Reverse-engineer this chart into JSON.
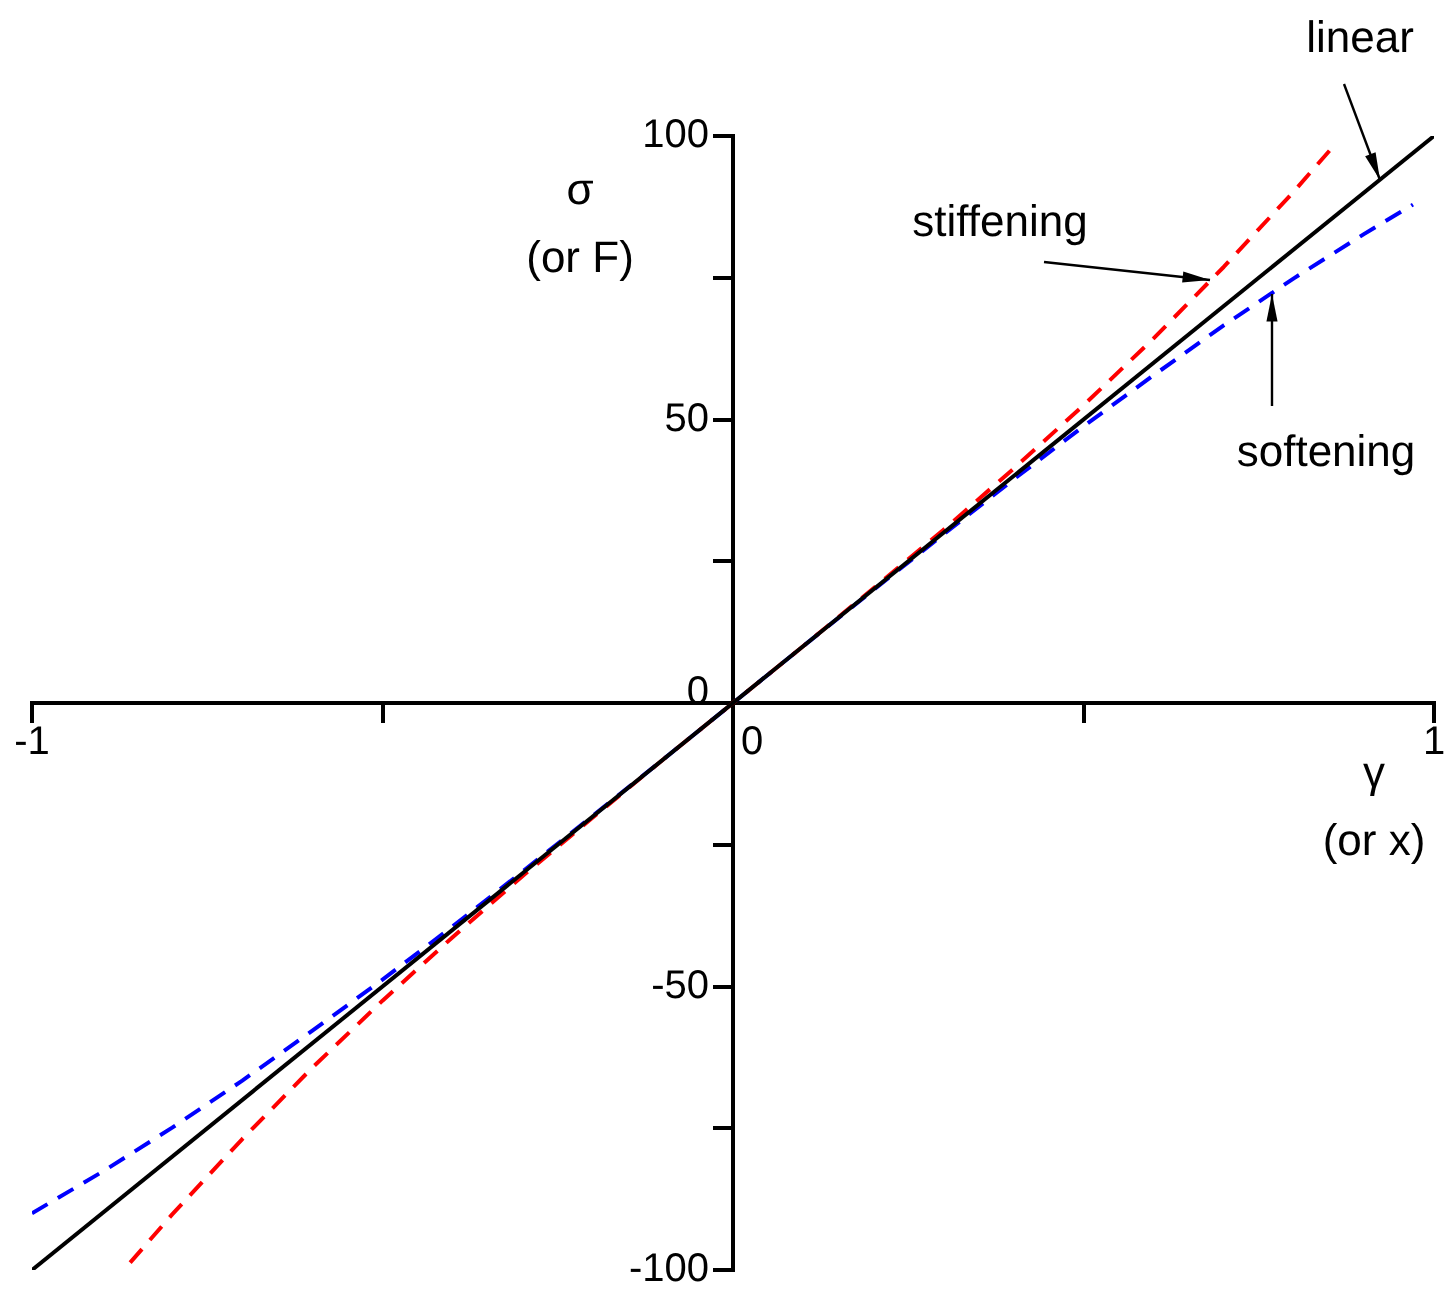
{
  "chart_data": {
    "type": "line",
    "xlabel": "γ\n(or x)",
    "ylabel": "σ\n(or F)",
    "xlim": [
      -1,
      1
    ],
    "ylim": [
      -100,
      100
    ],
    "xticks": [
      -1,
      {
        "value": -0.5,
        "label": null
      },
      0,
      {
        "value": 0.5,
        "label": null
      },
      1
    ],
    "yticks": [
      -100,
      {
        "value": -75,
        "label": null
      },
      -50,
      {
        "value": -25,
        "label": null
      },
      0,
      {
        "value": 25,
        "label": null
      },
      50,
      {
        "value": 75,
        "label": null
      },
      100
    ],
    "grid": false,
    "legend": false,
    "marker": "none",
    "series": [
      {
        "name": "linear",
        "color": "#000000",
        "line_style": "solid",
        "x": [
          -1,
          1
        ],
        "values": [
          -100,
          100
        ]
      },
      {
        "name": "stiffening",
        "color": "#ff0000",
        "line_style": "dashed",
        "x": [
          -0.86,
          -0.8,
          -0.7,
          -0.6,
          -0.5,
          -0.4,
          -0.3,
          -0.2,
          -0.1,
          0,
          0.1,
          0.2,
          0.3,
          0.4,
          0.5,
          0.6,
          0.7,
          0.8,
          0.86
        ],
        "values": [
          -98.7,
          -90.2,
          -76.9,
          -64.3,
          -52.5,
          -41.3,
          -30.5,
          -20.2,
          -10,
          0,
          10,
          20.2,
          30.5,
          41.3,
          52.5,
          64.3,
          76.9,
          90.2,
          98.7
        ]
      },
      {
        "name": "softening",
        "color": "#0000ff",
        "line_style": "dashed",
        "x": [
          -1,
          -0.9,
          -0.8,
          -0.7,
          -0.6,
          -0.5,
          -0.4,
          -0.3,
          -0.2,
          -0.1,
          0,
          0.1,
          0.2,
          0.3,
          0.4,
          0.5,
          0.6,
          0.7,
          0.8,
          0.9,
          0.97
        ],
        "values": [
          -90,
          -82.7,
          -74.9,
          -66.6,
          -57.8,
          -48.8,
          -39.4,
          -29.7,
          -19.9,
          -10,
          0,
          10,
          19.9,
          29.7,
          39.4,
          48.8,
          57.8,
          66.6,
          74.9,
          82.7,
          87.9
        ]
      }
    ]
  }
}
